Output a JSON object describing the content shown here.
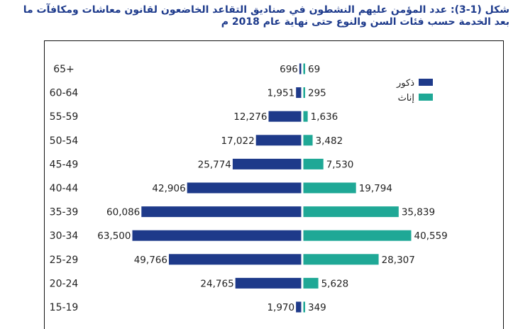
{
  "chart_data": {
    "type": "bar",
    "orientation": "horizontal-pyramid",
    "title_line1": "شكل (1-3): عدد المؤمن عليهم النشطون في صناديق التقاعد الخاضعون لقانون معاشات ومكافآت ما",
    "title_line2": "بعد الخدمة حسب فئات السن والنوع حتى نهاية عام 2018 م",
    "categories": [
      "65+",
      "60-64",
      "55-59",
      "50-54",
      "45-49",
      "40-44",
      "35-39",
      "30-34",
      "25-29",
      "20-24",
      "15-19"
    ],
    "series": [
      {
        "name": "ذكور",
        "color": "#1e3a8a",
        "side": "left",
        "values": [
          696,
          1951,
          12276,
          17022,
          25774,
          42906,
          60086,
          63500,
          49766,
          24765,
          1970
        ],
        "labels": [
          "696",
          "1,951",
          "12,276",
          "17,022",
          "25,774",
          "42,906",
          "60,086",
          "63,500",
          "49,766",
          "24,765",
          "1,970"
        ]
      },
      {
        "name": "إناث",
        "color": "#1fa896",
        "side": "right",
        "values": [
          69,
          295,
          1636,
          3482,
          7530,
          19794,
          35839,
          40559,
          28307,
          5628,
          349
        ],
        "labels": [
          "69",
          "295",
          "1,636",
          "3,482",
          "7,530",
          "19,794",
          "35,839",
          "40,559",
          "28,307",
          "5,628",
          "349"
        ]
      }
    ],
    "legend_position": "top-right",
    "xmax": 63500
  }
}
